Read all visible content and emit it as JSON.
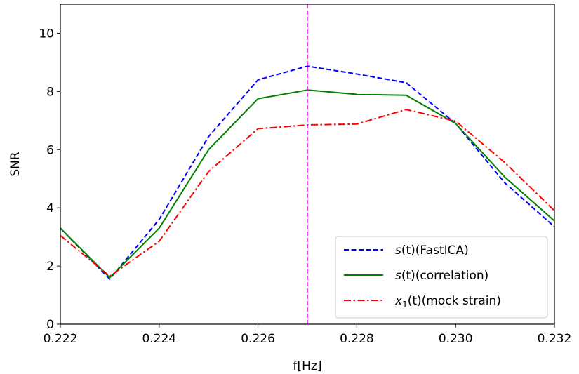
{
  "chart_data": {
    "type": "line",
    "title": "",
    "xlabel": "f[Hz]",
    "ylabel": "SNR",
    "xlim": [
      0.222,
      0.232
    ],
    "ylim": [
      0,
      11
    ],
    "xticks": [
      0.222,
      0.224,
      0.226,
      0.228,
      0.23,
      0.232
    ],
    "xtick_labels": [
      "0.222",
      "0.224",
      "0.226",
      "0.228",
      "0.230",
      "0.232"
    ],
    "yticks": [
      0,
      2,
      4,
      6,
      8,
      10
    ],
    "ytick_labels": [
      "0",
      "2",
      "4",
      "6",
      "8",
      "10"
    ],
    "grid": false,
    "legend_position": "bottom-right",
    "x": [
      0.222,
      0.223,
      0.224,
      0.225,
      0.226,
      0.227,
      0.228,
      0.229,
      0.23,
      0.231,
      0.232
    ],
    "series": [
      {
        "name": "s(t)(FastICA)",
        "name_parts": {
          "var": "s",
          "arg": "(t)",
          "rest": "(FastICA)"
        },
        "color": "#0000ff",
        "style": "dashed",
        "values": [
          3.3,
          1.55,
          3.6,
          6.45,
          8.4,
          8.87,
          8.6,
          8.3,
          6.9,
          4.85,
          3.35
        ]
      },
      {
        "name": "s(t)(correlation)",
        "name_parts": {
          "var": "s",
          "arg": "(t)",
          "rest": "(correlation)"
        },
        "color": "#008000",
        "style": "solid",
        "values": [
          3.3,
          1.6,
          3.3,
          6.0,
          7.75,
          8.05,
          7.9,
          7.87,
          6.9,
          5.05,
          3.55
        ]
      },
      {
        "name": "x1(t)(mock strain)",
        "name_parts": {
          "var": "x",
          "sub": "1",
          "arg": "(t)",
          "rest": "(mock strain)"
        },
        "color": "#ff0000",
        "style": "dashdot",
        "values": [
          3.05,
          1.65,
          2.85,
          5.25,
          6.72,
          6.85,
          6.88,
          7.38,
          6.98,
          5.55,
          3.9
        ]
      }
    ],
    "vline": {
      "x": 0.227,
      "color": "#ff00ff",
      "style": "dashed"
    }
  }
}
